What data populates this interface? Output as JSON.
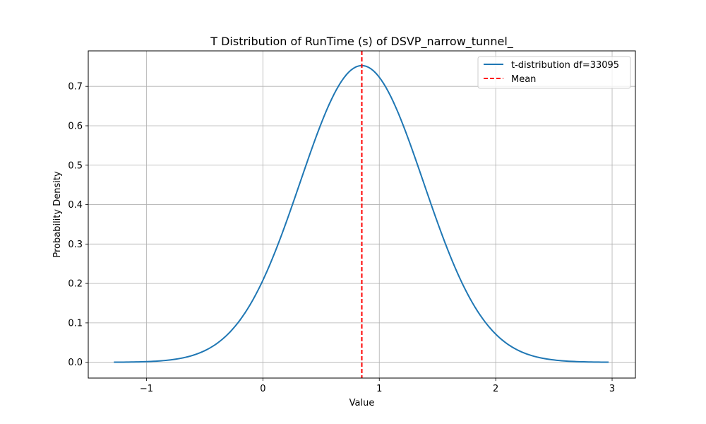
{
  "chart_data": {
    "type": "line",
    "title": "T Distribution of RunTime (s) of DSVP_narrow_tunnel_",
    "xlabel": "Value",
    "ylabel": "Probability Density",
    "xlim": [
      -1.5,
      3.2
    ],
    "ylim": [
      -0.04,
      0.79
    ],
    "x_ticks": [
      -1,
      0,
      1,
      2,
      3
    ],
    "x_tick_labels": [
      "−1",
      "0",
      "1",
      "2",
      "3"
    ],
    "y_ticks": [
      0.0,
      0.1,
      0.2,
      0.3,
      0.4,
      0.5,
      0.6,
      0.7
    ],
    "y_tick_labels": [
      "0.0",
      "0.1",
      "0.2",
      "0.3",
      "0.4",
      "0.5",
      "0.6",
      "0.7"
    ],
    "grid": true,
    "legend_position": "upper-right",
    "series": [
      {
        "name": "t-distribution df=33095",
        "color": "#1f77b4",
        "style": "solid",
        "distribution": {
          "mean": 0.85,
          "scale": 0.53,
          "df": 33095
        },
        "x_range": [
          -1.28,
          2.97
        ]
      },
      {
        "name": "Mean",
        "color": "#ff0000",
        "style": "dashed",
        "x_value": 0.85
      }
    ]
  }
}
